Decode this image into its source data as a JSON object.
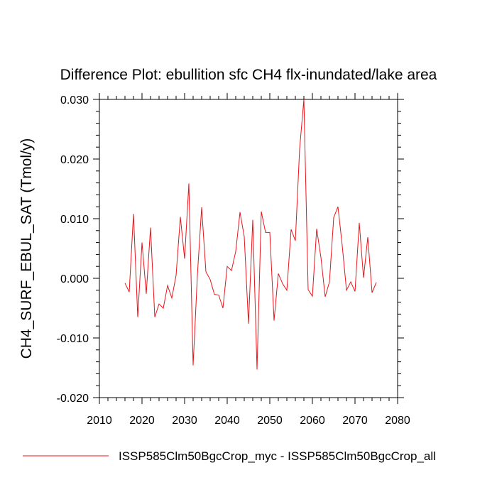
{
  "chart_data": {
    "type": "line",
    "title": "Difference Plot: ebullition sfc CH4 flx-inundated/lake area",
    "xlabel": "",
    "ylabel": "CH4_SURF_EBUL_SAT  (Tmol/y)",
    "xlim": [
      2010,
      2080
    ],
    "ylim": [
      -0.02,
      0.03
    ],
    "x_ticks": [
      2010,
      2020,
      2030,
      2040,
      2050,
      2060,
      2070,
      2080
    ],
    "x_tick_labels": [
      "2010",
      "2020",
      "2030",
      "2040",
      "2050",
      "2060",
      "2070",
      "2080"
    ],
    "y_ticks": [
      -0.02,
      -0.01,
      0.0,
      0.01,
      0.02,
      0.03
    ],
    "y_tick_labels": [
      "-0.020",
      "-0.010",
      "0.000",
      "0.010",
      "0.020",
      "0.030"
    ],
    "grid": false,
    "legend_position": "bottom",
    "series": [
      {
        "name": "ISSP585Clm50BgcCrop_myc - ISSP585Clm50BgcCrop_all",
        "color": "#e8141a",
        "x": [
          2016,
          2017,
          2018,
          2019,
          2020,
          2021,
          2022,
          2023,
          2024,
          2025,
          2026,
          2027,
          2028,
          2029,
          2030,
          2031,
          2032,
          2033,
          2034,
          2035,
          2036,
          2037,
          2038,
          2039,
          2040,
          2041,
          2042,
          2043,
          2044,
          2045,
          2046,
          2047,
          2048,
          2049,
          2050,
          2051,
          2052,
          2053,
          2054,
          2055,
          2056,
          2057,
          2058,
          2059,
          2060,
          2061,
          2062,
          2063,
          2064,
          2065,
          2066,
          2067,
          2068,
          2069,
          2070,
          2071,
          2072,
          2073,
          2074,
          2075
        ],
        "values": [
          -0.0008,
          -0.0023,
          0.0108,
          -0.0065,
          0.006,
          -0.0026,
          0.0085,
          -0.0065,
          -0.0043,
          -0.005,
          -0.0012,
          -0.0033,
          0.0005,
          0.0103,
          0.0033,
          0.0159,
          -0.0146,
          0.0005,
          0.0119,
          0.0011,
          -0.0002,
          -0.0027,
          -0.0028,
          -0.005,
          0.002,
          0.0013,
          0.0045,
          0.0111,
          0.007,
          -0.0076,
          0.0098,
          -0.0153,
          0.0112,
          0.0077,
          0.0077,
          -0.0071,
          0.0008,
          -0.0009,
          -0.002,
          0.0082,
          0.0063,
          0.0217,
          0.03,
          -0.0019,
          -0.003,
          0.0083,
          0.0035,
          -0.0031,
          -0.0006,
          0.0102,
          0.012,
          0.0055,
          -0.002,
          -0.0006,
          -0.0022,
          0.0093,
          0.0001,
          0.0069,
          -0.0024,
          -0.0007
        ]
      }
    ]
  }
}
